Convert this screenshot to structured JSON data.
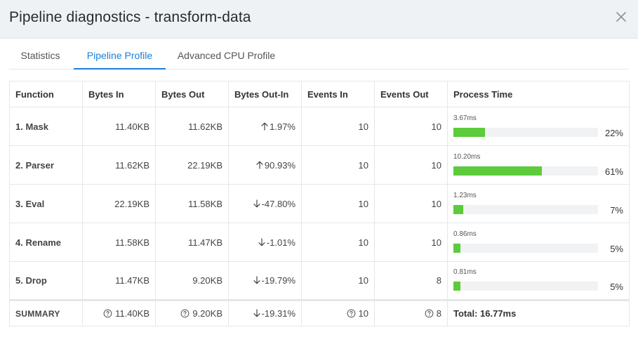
{
  "dialog": {
    "title": "Pipeline diagnostics - transform-data",
    "close_icon": "close-icon"
  },
  "tabs": [
    {
      "label": "Statistics",
      "active": false
    },
    {
      "label": "Pipeline Profile",
      "active": true
    },
    {
      "label": "Advanced CPU Profile",
      "active": false
    }
  ],
  "colors": {
    "accent": "#1b7ed4",
    "bar_fill": "#5ccb3c",
    "bar_track": "#f1f2f3",
    "header_bg": "#eff2f5"
  },
  "table": {
    "headers": [
      "Function",
      "Bytes In",
      "Bytes Out",
      "Bytes Out-In",
      "Events In",
      "Events Out",
      "Process Time"
    ],
    "rows": [
      {
        "function": "1. Mask",
        "bytes_in": "11.40KB",
        "bytes_out": "11.62KB",
        "delta_dir": "up",
        "delta": "1.97%",
        "events_in": "10",
        "events_out": "10",
        "time": "3.67ms",
        "pct": "22%",
        "fraction": 0.22
      },
      {
        "function": "2. Parser",
        "bytes_in": "11.62KB",
        "bytes_out": "22.19KB",
        "delta_dir": "up",
        "delta": "90.93%",
        "events_in": "10",
        "events_out": "10",
        "time": "10.20ms",
        "pct": "61%",
        "fraction": 0.61
      },
      {
        "function": "3. Eval",
        "bytes_in": "22.19KB",
        "bytes_out": "11.58KB",
        "delta_dir": "down",
        "delta": "-47.80%",
        "events_in": "10",
        "events_out": "10",
        "time": "1.23ms",
        "pct": "7%",
        "fraction": 0.07
      },
      {
        "function": "4. Rename",
        "bytes_in": "11.58KB",
        "bytes_out": "11.47KB",
        "delta_dir": "down",
        "delta": "-1.01%",
        "events_in": "10",
        "events_out": "10",
        "time": "0.86ms",
        "pct": "5%",
        "fraction": 0.05
      },
      {
        "function": "5. Drop",
        "bytes_in": "11.47KB",
        "bytes_out": "9.20KB",
        "delta_dir": "down",
        "delta": "-19.79%",
        "events_in": "10",
        "events_out": "8",
        "time": "0.81ms",
        "pct": "5%",
        "fraction": 0.05
      }
    ],
    "summary": {
      "label": "SUMMARY",
      "bytes_in": "11.40KB",
      "bytes_out": "9.20KB",
      "delta_dir": "down",
      "delta": "-19.31%",
      "events_in": "10",
      "events_out": "8",
      "total": "Total: 16.77ms",
      "help_icon": "question-circle-icon"
    }
  }
}
